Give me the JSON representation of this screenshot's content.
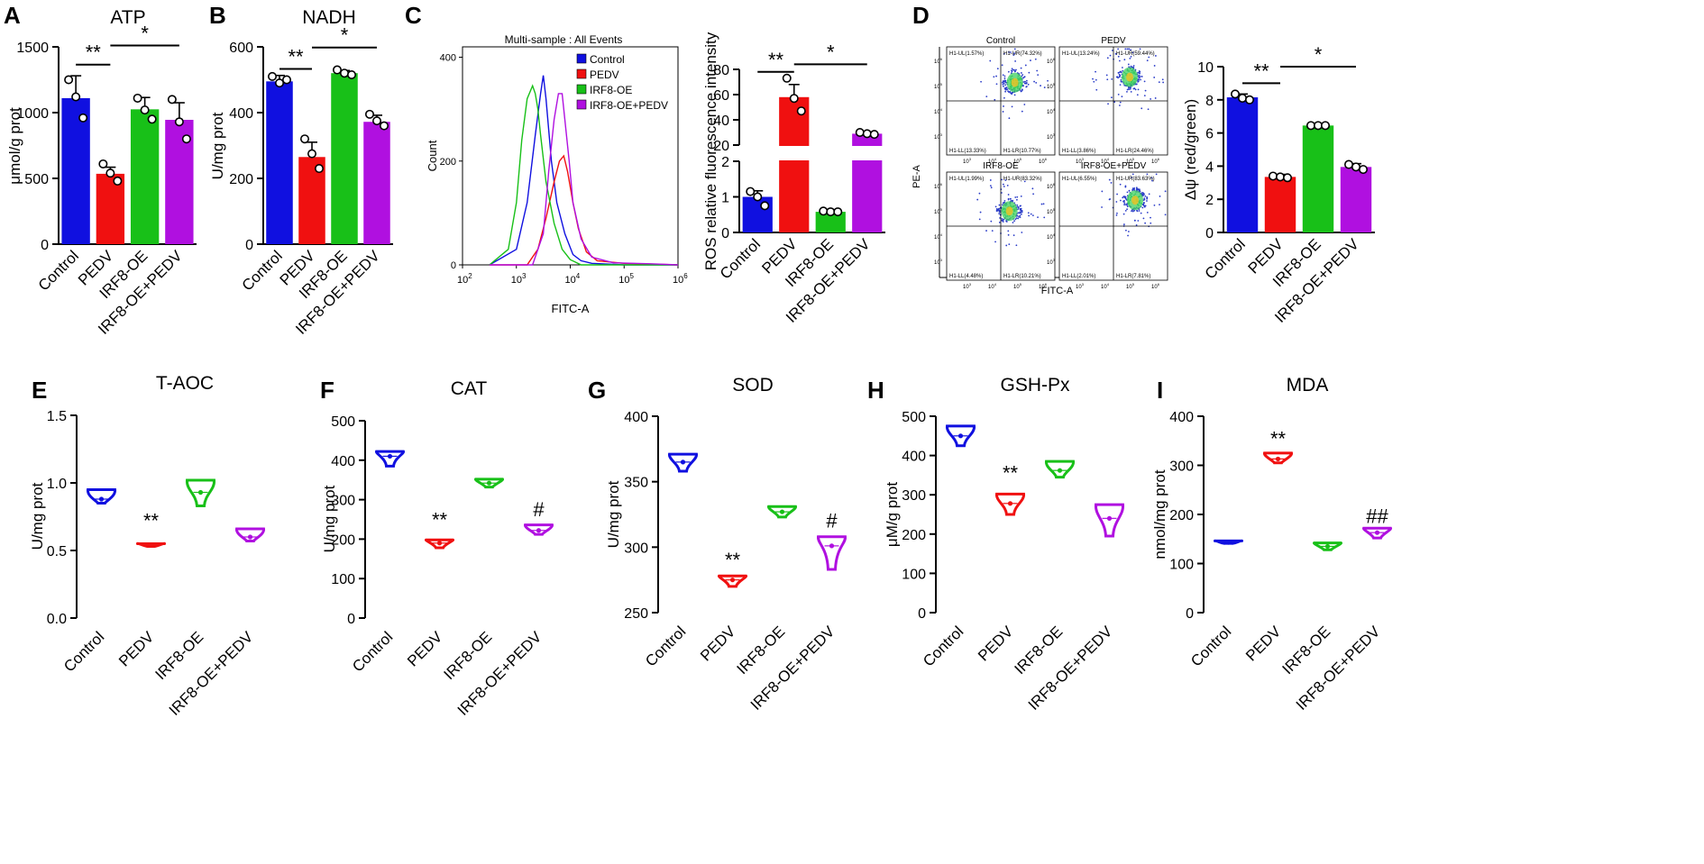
{
  "figure": {
    "group_labels": [
      "Control",
      "PEDV",
      "IRF8-OE",
      "IRF8-OE+PEDV"
    ],
    "colors": {
      "Control": "#1010e0",
      "PEDV": "#f01010",
      "IRF8-OE": "#18c018",
      "IRF8-OE+PEDV": "#b010e0",
      "axis": "#000000"
    }
  },
  "chart_data": [
    {
      "id": "A",
      "panel_label": "A",
      "type": "bar",
      "title": "ATP",
      "xlabel": "",
      "ylabel": "μmol/g prot",
      "categories": [
        "Control",
        "PEDV",
        "IRF8-OE",
        "IRF8-OE+PEDV"
      ],
      "values": [
        1110,
        535,
        1025,
        945
      ],
      "errors": [
        170,
        50,
        90,
        130
      ],
      "points": [
        [
          1250,
          1120,
          960
        ],
        [
          610,
          540,
          480
        ],
        [
          1110,
          1020,
          950
        ],
        [
          1100,
          930,
          800
        ]
      ],
      "ylim": [
        0,
        1500
      ],
      "yticks": [
        0,
        500,
        1000,
        1500
      ],
      "significance": [
        {
          "label": "**",
          "from": 0,
          "to": 1,
          "y": 1365
        },
        {
          "label": "*",
          "from": 1,
          "to": 3,
          "y": 1510
        }
      ]
    },
    {
      "id": "B",
      "panel_label": "B",
      "type": "bar",
      "title": "NADH",
      "xlabel": "",
      "ylabel": "U/mg prot",
      "categories": [
        "Control",
        "PEDV",
        "IRF8-OE",
        "IRF8-OE+PEDV"
      ],
      "values": [
        495,
        265,
        520,
        372
      ],
      "errors": [
        18,
        45,
        8,
        20
      ],
      "points": [
        [
          510,
          490,
          500
        ],
        [
          320,
          275,
          230
        ],
        [
          530,
          520,
          515
        ],
        [
          395,
          375,
          360
        ]
      ],
      "ylim": [
        0,
        600
      ],
      "yticks": [
        0,
        200,
        400,
        600
      ],
      "significance": [
        {
          "label": "**",
          "from": 0,
          "to": 1,
          "y": 533
        },
        {
          "label": "*",
          "from": 1,
          "to": 3,
          "y": 598
        }
      ]
    },
    {
      "id": "C1",
      "panel_label": "C",
      "type": "line",
      "title": "Multi-sample : All Events",
      "xlabel": "FITC-A",
      "ylabel": "Count",
      "xlim": [
        2,
        6
      ],
      "ylim": [
        0,
        420
      ],
      "xticks": [
        {
          "v": 2,
          "exp": "2"
        },
        {
          "v": 3,
          "exp": "3"
        },
        {
          "v": 4,
          "exp": "4"
        },
        {
          "v": 5,
          "exp": "5"
        },
        {
          "v": 6,
          "exp": "6"
        }
      ],
      "xtick_base": "10",
      "yticks": [
        0,
        200,
        400
      ],
      "series": [
        {
          "name": "Control",
          "x": [
            2.5,
            3.0,
            3.2,
            3.35,
            3.45,
            3.5,
            3.55,
            3.6,
            3.65,
            3.75,
            3.9,
            4.05,
            4.2,
            4.4,
            5.0,
            6.0
          ],
          "y": [
            0,
            30,
            120,
            250,
            330,
            365,
            320,
            260,
            200,
            120,
            60,
            20,
            8,
            3,
            0,
            0
          ]
        },
        {
          "name": "PEDV",
          "x": [
            2.5,
            3.2,
            3.4,
            3.55,
            3.7,
            3.8,
            3.88,
            3.95,
            4.05,
            4.15,
            4.3,
            4.5,
            5.0,
            6.0
          ],
          "y": [
            0,
            0,
            30,
            90,
            160,
            200,
            210,
            180,
            120,
            70,
            25,
            8,
            3,
            0
          ]
        },
        {
          "name": "IRF8-OE",
          "x": [
            2.5,
            2.85,
            3.0,
            3.1,
            3.2,
            3.3,
            3.35,
            3.4,
            3.45,
            3.55,
            3.7,
            3.85,
            4.0,
            4.2,
            6.0
          ],
          "y": [
            0,
            30,
            120,
            240,
            320,
            345,
            330,
            300,
            250,
            160,
            80,
            30,
            10,
            0,
            0
          ]
        },
        {
          "name": "IRF8-OE+PEDV",
          "x": [
            2.5,
            3.3,
            3.5,
            3.6,
            3.7,
            3.78,
            3.85,
            3.9,
            3.98,
            4.05,
            4.2,
            4.4,
            4.8,
            5.5,
            6.0
          ],
          "y": [
            0,
            0,
            60,
            180,
            280,
            330,
            330,
            280,
            200,
            120,
            50,
            15,
            4,
            2,
            0
          ]
        }
      ]
    },
    {
      "id": "C2",
      "panel_label": "",
      "type": "bar",
      "title": "",
      "xlabel": "",
      "ylabel": "ROS relative fluorescence intensity",
      "categories": [
        "Control",
        "PEDV",
        "IRF8-OE",
        "IRF8-OE+PEDV"
      ],
      "values": [
        1.0,
        58,
        0.58,
        29
      ],
      "errors": [
        0.17,
        10,
        0.02,
        1.0
      ],
      "points": [
        [
          1.15,
          1.0,
          0.75
        ],
        [
          73,
          57,
          47
        ],
        [
          0.6,
          0.58,
          0.58
        ],
        [
          30,
          29,
          28.5
        ]
      ],
      "ylim": [
        0,
        80
      ],
      "axis_break": {
        "lower": [
          0,
          2
        ],
        "upper": [
          20,
          80
        ]
      },
      "yticks": [
        0,
        1,
        2,
        20,
        40,
        60,
        80
      ],
      "significance": [
        {
          "label": "**",
          "from": 0,
          "to": 1,
          "y": 78
        },
        {
          "label": "*",
          "from": 1,
          "to": 3,
          "y": 84
        }
      ]
    },
    {
      "id": "D1",
      "panel_label": "D",
      "type": "scatter",
      "title": "",
      "xlabel": "FITC-A",
      "ylabel": "PE-A",
      "quadrants": [
        {
          "name": "Control",
          "ul": "H1-UL(1.57%)",
          "ur": "H1-UR(74.32%)",
          "ll": "H1-LL(13.33%)",
          "lr": "H1-LR(10.77%)"
        },
        {
          "name": "PEDV",
          "ul": "H1-UL(13.24%)",
          "ur": "H1-UR(59.44%)",
          "ll": "H1-LL(3.86%)",
          "lr": "H1-LR(24.46%)"
        },
        {
          "name": "IRF8-OE",
          "ul": "H1-UL(1.99%)",
          "ur": "H1-UR(83.32%)",
          "ll": "H1-LL(4.48%)",
          "lr": "H1-LR(10.21%)"
        },
        {
          "name": "IRF8-OE+PEDV",
          "ul": "H1-UL(6.55%)",
          "ur": "H1-UR(83.63%)",
          "ll": "H1-LL(2.01%)",
          "lr": "H1-LR(7.81%)"
        }
      ],
      "tick_labels": [
        "10",
        "10",
        "10",
        "10"
      ],
      "tick_exps": [
        "3",
        "4",
        "5",
        "6"
      ]
    },
    {
      "id": "D2",
      "panel_label": "",
      "type": "bar",
      "title": "",
      "xlabel": "",
      "ylabel": "Δψ (red/green)",
      "categories": [
        "Control",
        "PEDV",
        "IRF8-OE",
        "IRF8-OE+PEDV"
      ],
      "values": [
        8.15,
        3.35,
        6.45,
        3.95
      ],
      "errors": [
        0.2,
        0.15,
        0.05,
        0.2
      ],
      "points": [
        [
          8.35,
          8.1,
          8.0
        ],
        [
          3.4,
          3.35,
          3.3
        ],
        [
          6.45,
          6.45,
          6.45
        ],
        [
          4.1,
          3.95,
          3.8
        ]
      ],
      "ylim": [
        0,
        10
      ],
      "yticks": [
        0,
        2,
        4,
        6,
        8,
        10
      ],
      "significance": [
        {
          "label": "**",
          "from": 0,
          "to": 1,
          "y": 9.0
        },
        {
          "label": "*",
          "from": 1,
          "to": 3,
          "y": 10.0
        }
      ]
    },
    {
      "id": "E",
      "panel_label": "E",
      "type": "violin",
      "title": "T-AOC",
      "xlabel": "",
      "ylabel": "U/mg prot",
      "categories": [
        "Control",
        "PEDV",
        "IRF8-OE",
        "IRF8-OE+PEDV"
      ],
      "ranges": [
        [
          0.85,
          0.95
        ],
        [
          0.53,
          0.55
        ],
        [
          0.83,
          1.02
        ],
        [
          0.57,
          0.66
        ]
      ],
      "medians": [
        0.88,
        0.54,
        0.93,
        0.6
      ],
      "ylim": [
        0,
        1.5
      ],
      "yticks": [
        0.0,
        0.5,
        1.0,
        1.5
      ],
      "decimals": 1,
      "annotations": [
        {
          "index": 1,
          "label": "**",
          "y": 0.67
        }
      ]
    },
    {
      "id": "F",
      "panel_label": "F",
      "type": "violin",
      "title": "CAT",
      "xlabel": "",
      "ylabel": "U/mg prot",
      "categories": [
        "Control",
        "PEDV",
        "IRF8-OE",
        "IRF8-OE+PEDV"
      ],
      "ranges": [
        [
          385,
          422
        ],
        [
          178,
          198
        ],
        [
          332,
          352
        ],
        [
          212,
          236
        ]
      ],
      "medians": [
        410,
        190,
        342,
        222
      ],
      "ylim": [
        0,
        500
      ],
      "yticks": [
        0,
        100,
        200,
        300,
        400,
        500
      ],
      "decimals": 0,
      "annotations": [
        {
          "index": 1,
          "label": "**",
          "y": 232
        },
        {
          "index": 3,
          "label": "#",
          "y": 258
        }
      ]
    },
    {
      "id": "G",
      "panel_label": "G",
      "type": "violin",
      "title": "SOD",
      "xlabel": "",
      "ylabel": "U/mg prot",
      "categories": [
        "Control",
        "PEDV",
        "IRF8-OE",
        "IRF8-OE+PEDV"
      ],
      "ranges": [
        [
          358,
          371
        ],
        [
          270,
          278
        ],
        [
          323,
          331
        ],
        [
          283,
          308
        ]
      ],
      "medians": [
        365,
        275,
        327,
        301
      ],
      "ylim": [
        250,
        400
      ],
      "yticks": [
        250,
        300,
        350,
        400
      ],
      "decimals": 0,
      "annotations": [
        {
          "index": 1,
          "label": "**",
          "y": 285
        },
        {
          "index": 3,
          "label": "#",
          "y": 315
        }
      ]
    },
    {
      "id": "H",
      "panel_label": "H",
      "type": "violin",
      "title": "GSH-Px",
      "xlabel": "",
      "ylabel": "μM/g prot",
      "categories": [
        "Control",
        "PEDV",
        "IRF8-OE",
        "IRF8-OE+PEDV"
      ],
      "ranges": [
        [
          425,
          475
        ],
        [
          250,
          302
        ],
        [
          345,
          385
        ],
        [
          195,
          275
        ]
      ],
      "medians": [
        450,
        278,
        362,
        240
      ],
      "ylim": [
        0,
        500
      ],
      "yticks": [
        0,
        100,
        200,
        300,
        400,
        500
      ],
      "decimals": 0,
      "annotations": [
        {
          "index": 1,
          "label": "**",
          "y": 338
        }
      ]
    },
    {
      "id": "I",
      "panel_label": "I",
      "type": "violin",
      "title": "MDA",
      "xlabel": "",
      "ylabel": "nmol/mg prot",
      "categories": [
        "Control",
        "PEDV",
        "IRF8-OE",
        "IRF8-OE+PEDV"
      ],
      "ranges": [
        [
          141,
          146
        ],
        [
          305,
          325
        ],
        [
          128,
          142
        ],
        [
          152,
          172
        ]
      ],
      "medians": [
        143,
        313,
        135,
        163
      ],
      "ylim": [
        0,
        400
      ],
      "yticks": [
        0,
        100,
        200,
        300,
        400
      ],
      "decimals": 0,
      "annotations": [
        {
          "index": 1,
          "label": "**",
          "y": 340
        },
        {
          "index": 3,
          "label": "##",
          "y": 183
        }
      ]
    }
  ]
}
